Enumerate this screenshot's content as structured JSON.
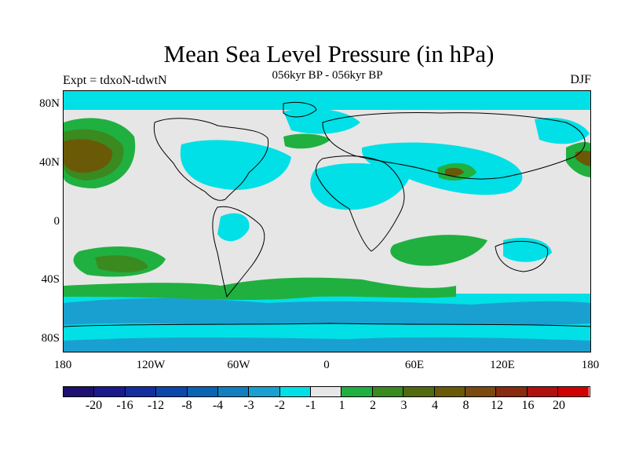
{
  "title": "Mean Sea Level Pressure (in hPa)",
  "subtitle": "056kyr BP - 056kyr BP",
  "left_string": "Expt = tdxoN-tdwtN",
  "right_string": "DJF",
  "map": {
    "projection": "cylindrical equidistant",
    "lon_range": [
      -180,
      180
    ],
    "lat_range": [
      -90,
      90
    ],
    "background_color": "#e6e6e6",
    "coastline_color": "#000000"
  },
  "axes": {
    "lat_ticks": [
      "80N",
      "40N",
      "0",
      "40S",
      "80S"
    ],
    "lon_ticks": [
      "180",
      "120W",
      "60W",
      "0",
      "60E",
      "120E",
      "180"
    ]
  },
  "colorbar": {
    "colors": [
      "#1e1070",
      "#1a1a8c",
      "#142ea0",
      "#0a48ac",
      "#0a64b4",
      "#1280c0",
      "#1aa0d0",
      "#00e0e6",
      "#e6e6e6",
      "#20b040",
      "#3a8a20",
      "#526a10",
      "#6a5a08",
      "#7a4a10",
      "#8a2a10",
      "#b01010",
      "#d00000"
    ],
    "labels": [
      "-20",
      "-16",
      "-12",
      "-8",
      "-4",
      "-3",
      "-2",
      "-1",
      "1",
      "2",
      "3",
      "4",
      "8",
      "12",
      "16",
      "20"
    ]
  },
  "chart_data": {
    "type": "heatmap",
    "title": "Mean Sea Level Pressure (in hPa)",
    "subtitle": "056kyr BP - 056kyr BP",
    "units": "hPa",
    "contour_levels": [
      -20,
      -16,
      -12,
      -8,
      -4,
      -3,
      -2,
      -1,
      1,
      2,
      3,
      4,
      8,
      12,
      16,
      20
    ],
    "regions": [
      {
        "level_range": [
          4,
          8
        ],
        "lon": [
          -180,
          -140
        ],
        "lat": [
          20,
          60
        ]
      },
      {
        "level_range": [
          2,
          3
        ],
        "lon": [
          -160,
          -120
        ],
        "lat": [
          -40,
          -20
        ]
      },
      {
        "level_range": [
          -2,
          -1
        ],
        "lon": [
          -180,
          180
        ],
        "lat": [
          -80,
          -50
        ]
      },
      {
        "level_range": [
          1,
          2
        ],
        "lon": [
          -180,
          180
        ],
        "lat": [
          -50,
          -35
        ]
      },
      {
        "level_range": [
          -1,
          1
        ],
        "lon": [
          -180,
          180
        ],
        "lat": [
          -30,
          60
        ]
      },
      {
        "level_range": [
          4,
          8
        ],
        "lon": [
          75,
          95
        ],
        "lat": [
          25,
          40
        ]
      }
    ]
  }
}
